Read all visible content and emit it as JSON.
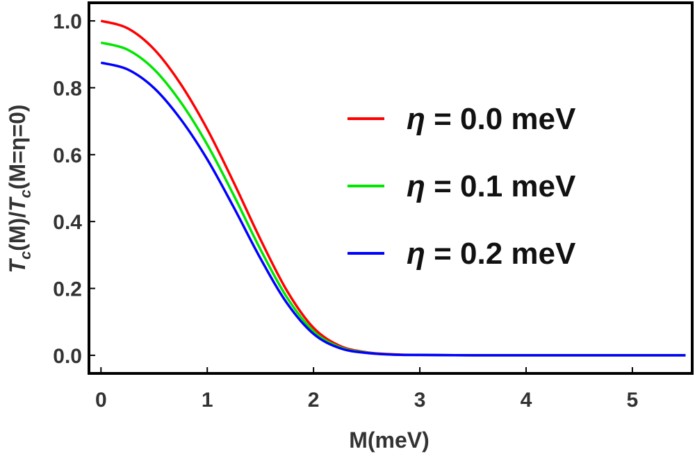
{
  "chart_data": {
    "type": "line",
    "title": "",
    "xlabel": "M(meV)",
    "ylabel_parts": {
      "t1": "T",
      "s1": "c",
      "m1": "(M)/",
      "t2": "T",
      "s2": "c",
      "m2": "(M=η=0)"
    },
    "xlim": [
      -0.1,
      5.55
    ],
    "ylim": [
      -0.05,
      1.05
    ],
    "xticks": [
      "0",
      "1",
      "2",
      "3",
      "4",
      "5"
    ],
    "yticks": [
      "0.0",
      "0.2",
      "0.4",
      "0.6",
      "0.8",
      "1.0"
    ],
    "legend_position": "center-right",
    "series": [
      {
        "name": "η = 0.0 meV",
        "eta_symbol": "η",
        "label_rest": " = 0.0 meV",
        "color": "#ff0000",
        "x": [
          0,
          0.25,
          0.5,
          0.75,
          1.0,
          1.25,
          1.5,
          1.75,
          2.0,
          2.25,
          2.5,
          2.75,
          3.0,
          3.5,
          4.0,
          4.5,
          5.0,
          5.5
        ],
        "y": [
          1.0,
          0.978,
          0.915,
          0.811,
          0.676,
          0.516,
          0.347,
          0.193,
          0.082,
          0.028,
          0.009,
          0.003,
          0.001,
          0.0,
          0.0,
          0.0,
          0.0,
          0.0
        ]
      },
      {
        "name": "η = 0.1 meV",
        "eta_symbol": "η",
        "label_rest": " = 0.1 meV",
        "color": "#00e600",
        "x": [
          0,
          0.25,
          0.5,
          0.75,
          1.0,
          1.25,
          1.5,
          1.75,
          2.0,
          2.25,
          2.5,
          2.75,
          3.0,
          3.5,
          4.0,
          4.5,
          5.0,
          5.5
        ],
        "y": [
          0.935,
          0.914,
          0.855,
          0.757,
          0.63,
          0.478,
          0.317,
          0.173,
          0.072,
          0.024,
          0.008,
          0.002,
          0.001,
          0.0,
          0.0,
          0.0,
          0.0,
          0.0
        ]
      },
      {
        "name": "η = 0.2 meV",
        "eta_symbol": "η",
        "label_rest": " = 0.2 meV",
        "color": "#0000ff",
        "x": [
          0,
          0.25,
          0.5,
          0.75,
          1.0,
          1.25,
          1.5,
          1.75,
          2.0,
          2.25,
          2.5,
          2.75,
          3.0,
          3.5,
          4.0,
          4.5,
          5.0,
          5.5
        ],
        "y": [
          0.875,
          0.855,
          0.799,
          0.706,
          0.586,
          0.442,
          0.29,
          0.156,
          0.064,
          0.021,
          0.007,
          0.002,
          0.001,
          0.0,
          0.0,
          0.0,
          0.0,
          0.0
        ]
      }
    ]
  }
}
